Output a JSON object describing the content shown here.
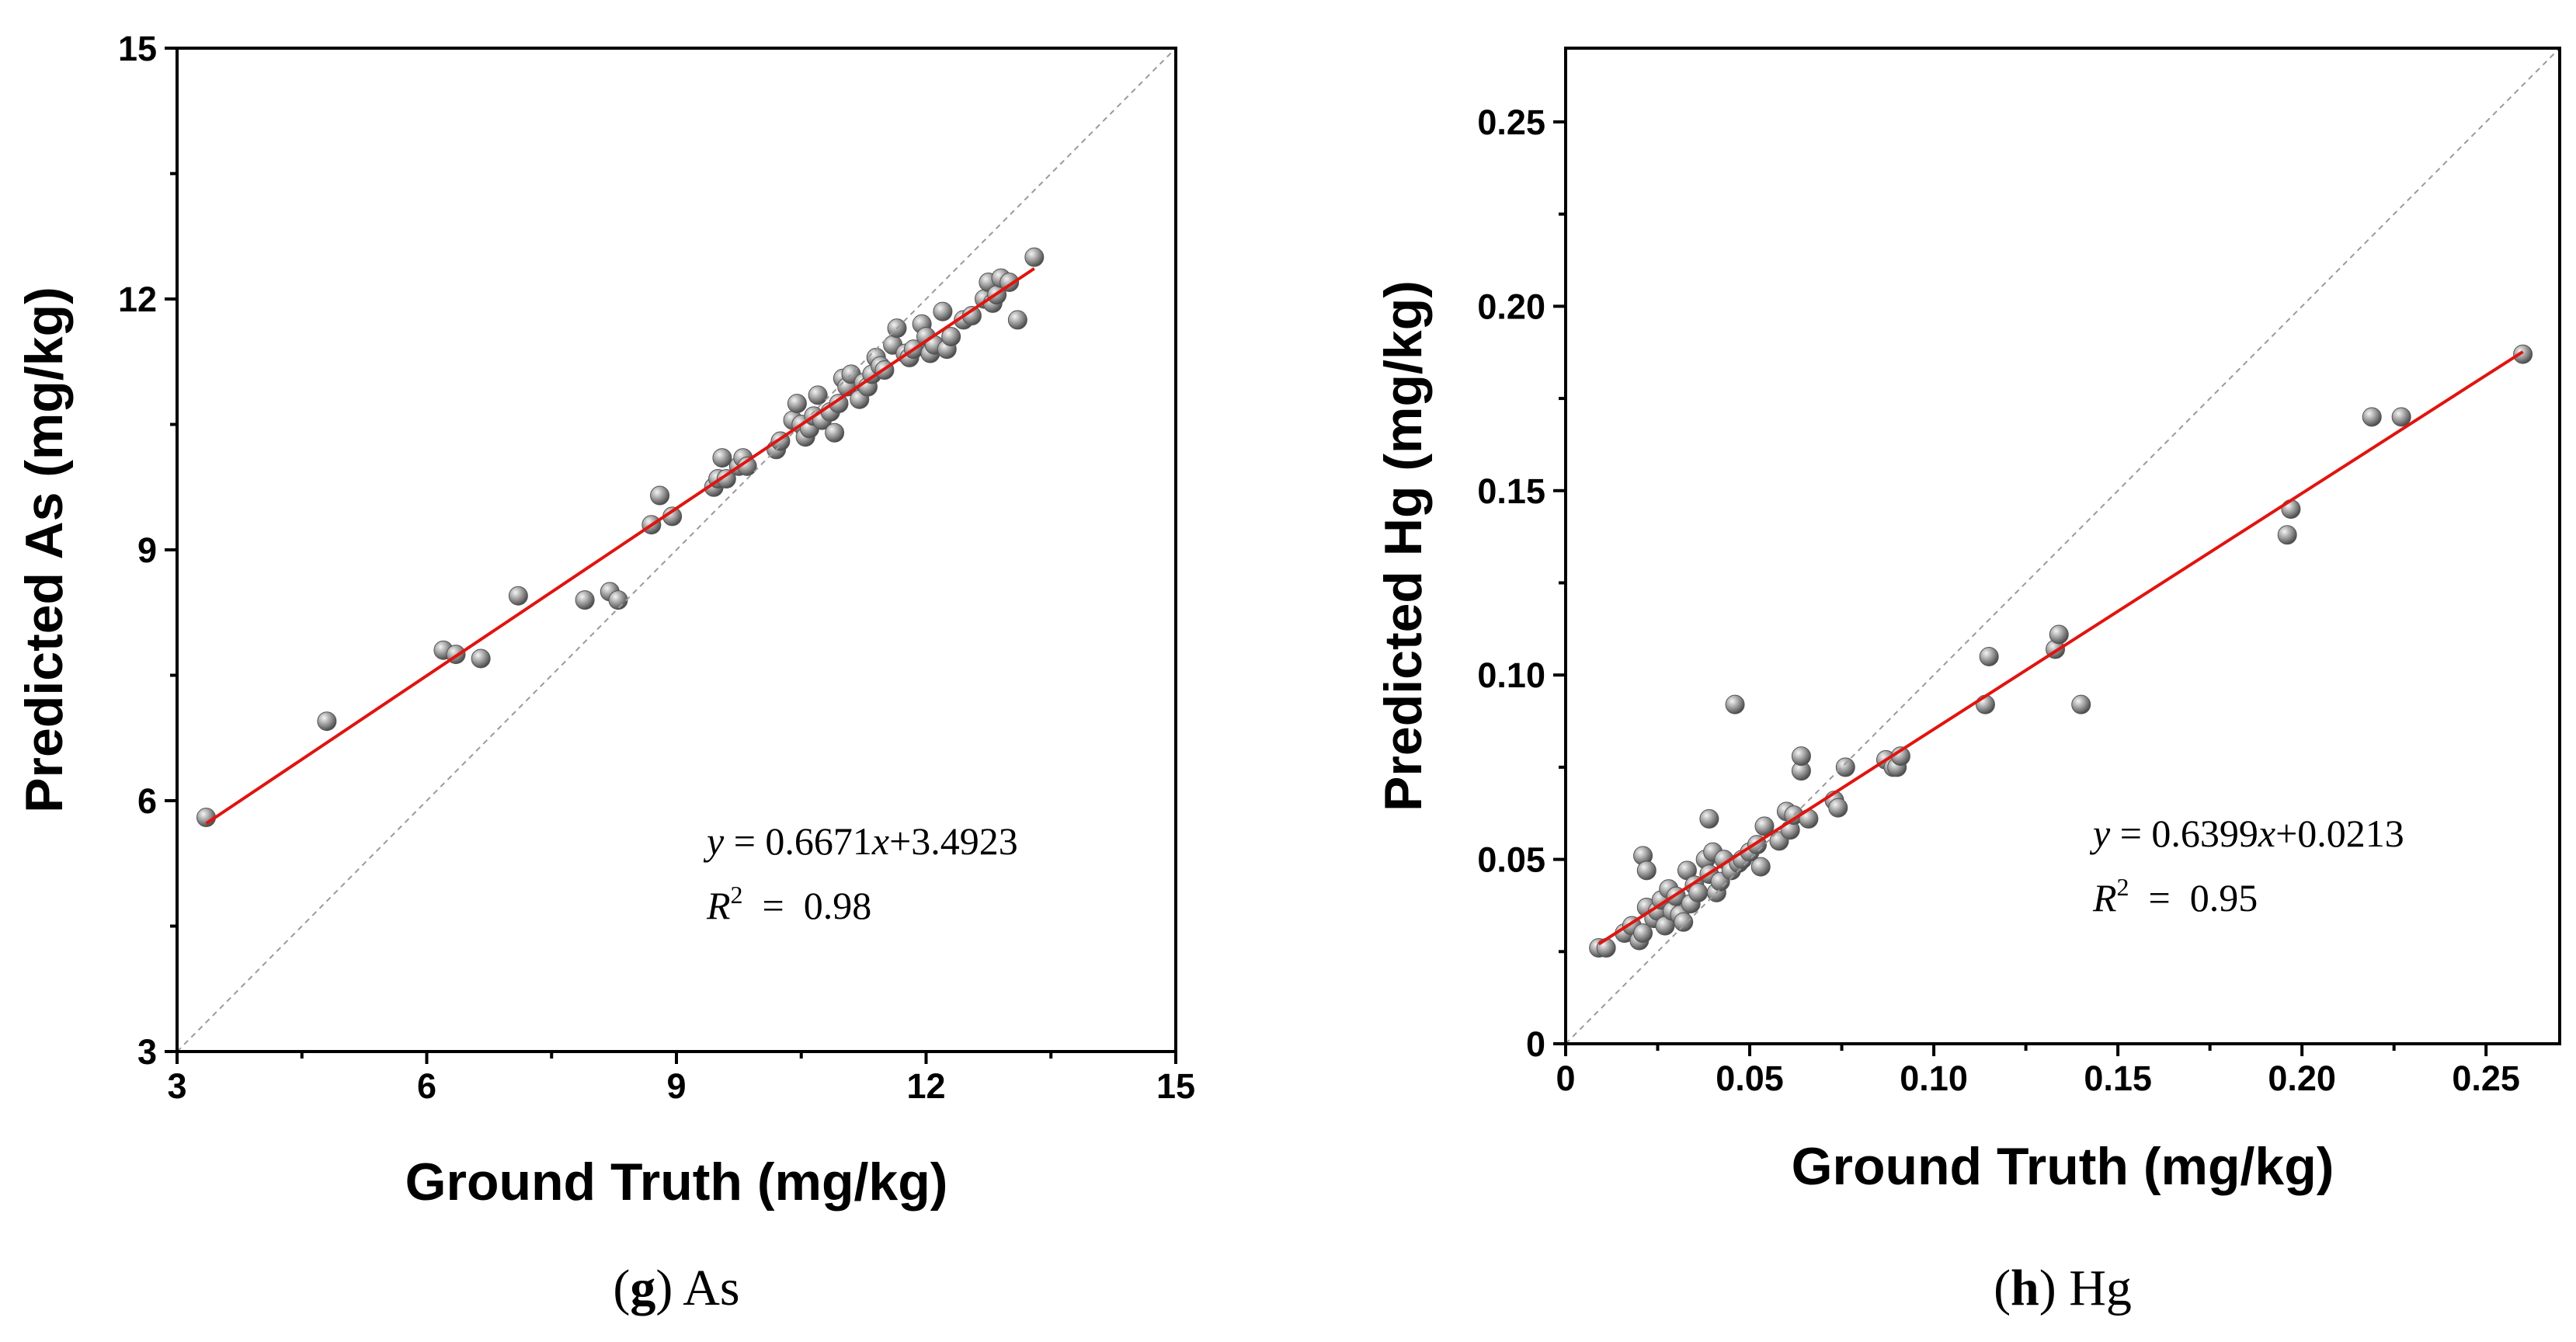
{
  "chart_data": [
    {
      "type": "scatter",
      "panel": "g",
      "caption": {
        "letter": "g",
        "text": "As"
      },
      "xlabel": "Ground Truth (mg/kg)",
      "ylabel": "Predicted As (mg/kg)",
      "xlim": [
        3,
        15
      ],
      "ylim": [
        3,
        15
      ],
      "xticks": [
        "3",
        "6",
        "9",
        "12",
        "15"
      ],
      "yticks": [
        "3",
        "6",
        "9",
        "12",
        "15"
      ],
      "fit": {
        "slope": 0.6671,
        "intercept": 3.4923,
        "x_range": [
          3.35,
          13.3
        ]
      },
      "equation": {
        "y": "y",
        "eq": " = 0.6671",
        "x": "x",
        "rest": "+3.4923"
      },
      "r2": {
        "R": "R",
        "sup": "2",
        "rest": "  =  0.98"
      },
      "identity_line": true,
      "points": {
        "x": [
          3.35,
          4.8,
          6.2,
          6.35,
          6.65,
          7.1,
          7.9,
          8.2,
          8.3,
          8.7,
          8.8,
          8.95,
          9.45,
          9.5,
          9.55,
          9.6,
          9.75,
          9.8,
          9.85,
          10.2,
          10.25,
          10.4,
          10.45,
          10.5,
          10.55,
          10.6,
          10.65,
          10.7,
          10.75,
          10.85,
          10.9,
          10.95,
          11.0,
          11.05,
          11.1,
          11.2,
          11.25,
          11.3,
          11.35,
          11.4,
          11.45,
          11.5,
          11.6,
          11.65,
          11.75,
          11.8,
          11.85,
          11.95,
          12.0,
          12.05,
          12.1,
          12.2,
          12.25,
          12.3,
          12.45,
          12.55,
          12.7,
          12.75,
          12.8,
          12.85,
          12.9,
          13.0,
          13.1,
          13.3
        ],
        "y": [
          5.8,
          6.95,
          7.8,
          7.75,
          7.7,
          8.45,
          8.4,
          8.5,
          8.4,
          9.3,
          9.65,
          9.4,
          9.75,
          9.85,
          10.1,
          9.85,
          10.0,
          10.1,
          10.0,
          10.2,
          10.3,
          10.55,
          10.75,
          10.5,
          10.35,
          10.45,
          10.6,
          10.85,
          10.55,
          10.65,
          10.4,
          10.75,
          11.05,
          10.95,
          11.1,
          10.8,
          11.0,
          10.95,
          11.1,
          11.3,
          11.2,
          11.15,
          11.45,
          11.65,
          11.35,
          11.3,
          11.4,
          11.7,
          11.55,
          11.35,
          11.45,
          11.85,
          11.4,
          11.55,
          11.75,
          11.8,
          12.0,
          12.2,
          11.95,
          12.05,
          12.25,
          12.2,
          11.75,
          12.5
        ]
      }
    },
    {
      "type": "scatter",
      "panel": "h",
      "caption": {
        "letter": "h",
        "text": "Hg"
      },
      "xlabel": "Ground Truth (mg/kg)",
      "ylabel": "Predicted Hg (mg/kg)",
      "xlim": [
        0,
        0.27
      ],
      "ylim": [
        0,
        0.27
      ],
      "xticks": [
        "0",
        "0.05",
        "0.10",
        "0.15",
        "0.20",
        "0.25"
      ],
      "yticks": [
        "0",
        "0.05",
        "0.10",
        "0.15",
        "0.20",
        "0.25"
      ],
      "tick_values": [
        0,
        0.05,
        0.1,
        0.15,
        0.2,
        0.25
      ],
      "fit": {
        "slope": 0.6399,
        "intercept": 0.0213,
        "x_range": [
          0.009,
          0.26
        ]
      },
      "equation": {
        "y": "y",
        "eq": " = 0.6399",
        "x": "x",
        "rest": "+0.0213"
      },
      "r2": {
        "R": "R",
        "sup": "2",
        "rest": "  =  0.95"
      },
      "identity_line": true,
      "points": {
        "x": [
          0.009,
          0.011,
          0.016,
          0.018,
          0.02,
          0.021,
          0.021,
          0.022,
          0.022,
          0.024,
          0.025,
          0.026,
          0.027,
          0.028,
          0.029,
          0.03,
          0.031,
          0.032,
          0.033,
          0.034,
          0.035,
          0.036,
          0.038,
          0.039,
          0.039,
          0.04,
          0.041,
          0.042,
          0.043,
          0.045,
          0.046,
          0.047,
          0.048,
          0.05,
          0.052,
          0.053,
          0.054,
          0.058,
          0.06,
          0.061,
          0.062,
          0.064,
          0.064,
          0.066,
          0.073,
          0.074,
          0.076,
          0.087,
          0.089,
          0.09,
          0.091,
          0.114,
          0.115,
          0.133,
          0.134,
          0.14,
          0.196,
          0.197,
          0.219,
          0.227,
          0.26
        ],
        "y": [
          0.026,
          0.026,
          0.03,
          0.032,
          0.028,
          0.051,
          0.03,
          0.047,
          0.037,
          0.034,
          0.036,
          0.039,
          0.032,
          0.042,
          0.036,
          0.04,
          0.035,
          0.033,
          0.047,
          0.038,
          0.043,
          0.041,
          0.05,
          0.061,
          0.046,
          0.052,
          0.041,
          0.044,
          0.05,
          0.047,
          0.092,
          0.049,
          0.05,
          0.052,
          0.054,
          0.048,
          0.059,
          0.055,
          0.063,
          0.058,
          0.062,
          0.074,
          0.078,
          0.061,
          0.066,
          0.064,
          0.075,
          0.077,
          0.075,
          0.075,
          0.078,
          0.092,
          0.105,
          0.107,
          0.111,
          0.092,
          0.138,
          0.145,
          0.17,
          0.17,
          0.187
        ]
      }
    }
  ]
}
